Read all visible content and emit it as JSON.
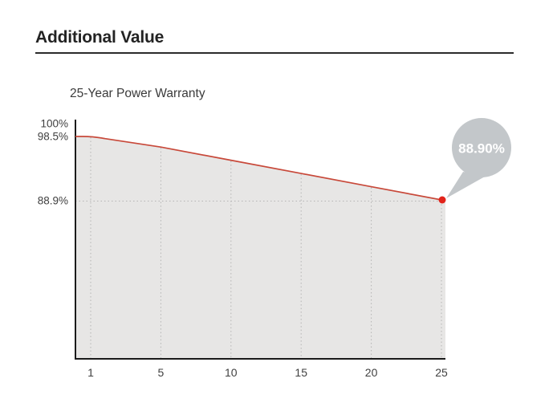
{
  "page": {
    "title": "Additional Value"
  },
  "chart": {
    "title": "25-Year Power Warranty"
  },
  "chart_data": {
    "type": "area",
    "title": "25-Year Power Warranty",
    "categories": [
      "1",
      "5",
      "10",
      "15",
      "20",
      "25"
    ],
    "values": [
      98.5,
      96.9,
      94.9,
      92.9,
      90.9,
      88.9
    ],
    "start_value": 98.5,
    "unit": "%",
    "xlabel": "",
    "ylabel": "",
    "y_axis_labels": [
      "100%",
      "98.5%",
      "88.9%"
    ],
    "callout_label": "88.90%",
    "legend_position": "none",
    "grid": "dotted",
    "colors": {
      "line": "#c8493a",
      "marker": "#e2231a",
      "area_fill": "#e7e6e5",
      "gridline": "#b4b4b4",
      "axis": "#1b1b1b",
      "callout_bubble": "#c3c7ca",
      "callout_text": "#ffffff"
    }
  }
}
